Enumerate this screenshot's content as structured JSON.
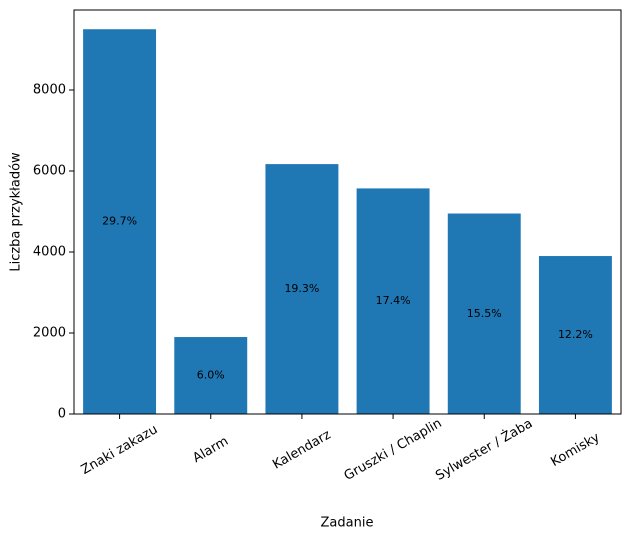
{
  "chart_data": {
    "type": "bar",
    "xlabel": "Zadanie",
    "ylabel": "Liczba przykładów",
    "categories": [
      "Znaki zakazu",
      "Alarm",
      "Kalendarz",
      "Gruszki / Chaplin",
      "Sylwester / Żaba",
      "Komisky"
    ],
    "values": [
      9500,
      1900,
      6170,
      5570,
      4950,
      3900
    ],
    "share_labels": [
      "29.7%",
      "6.0%",
      "19.3%",
      "17.4%",
      "15.5%",
      "12.2%"
    ],
    "color": "#1f77b4",
    "ylim": [
      0,
      9975
    ],
    "yticks": [
      0,
      2000,
      4000,
      6000,
      8000
    ]
  }
}
